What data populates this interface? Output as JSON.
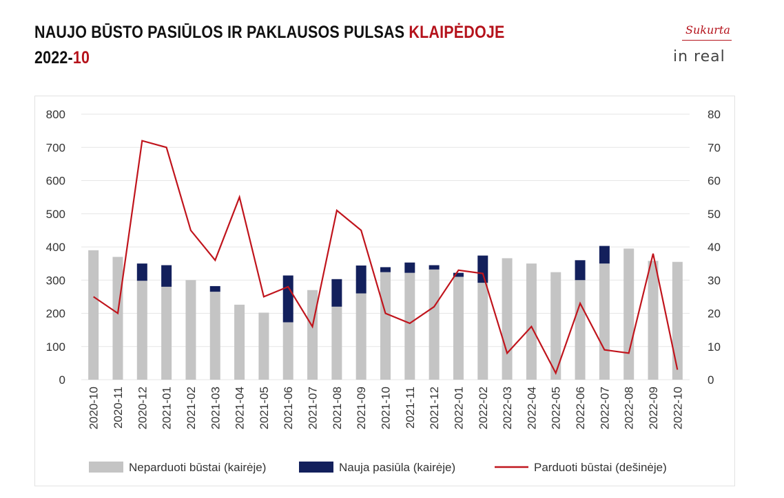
{
  "header": {
    "title_main": "NAUJO BŪSTO PASIŪLOS IR PAKLAUSOS PULSAS ",
    "title_accent": "KLAIPĖDOJE",
    "period_main": "2022-",
    "period_accent": "10"
  },
  "logo": {
    "top": "Sukurta",
    "main": "in real"
  },
  "colors": {
    "accent": "#b5121b",
    "unsold": "#c4c4c4",
    "new_offer": "#13205c",
    "sold_line": "#c0141c",
    "grid": "#e6e6e6"
  },
  "chart_data": {
    "type": "bar",
    "subtype": "stacked bar + line (secondary axis)",
    "categories": [
      "2020-10",
      "2020-11",
      "2020-12",
      "2021-01",
      "2021-02",
      "2021-03",
      "2021-04",
      "2021-05",
      "2021-06",
      "2021-07",
      "2021-08",
      "2021-09",
      "2021-10",
      "2021-11",
      "2021-12",
      "2022-01",
      "2022-02",
      "2022-03",
      "2022-04",
      "2022-05",
      "2022-06",
      "2022-07",
      "2022-08",
      "2022-09",
      "2022-10"
    ],
    "left_axis": {
      "ylim": [
        0,
        800
      ],
      "ticks": [
        "0",
        "100",
        "200",
        "300",
        "400",
        "500",
        "600",
        "700",
        "800"
      ]
    },
    "right_axis": {
      "ylim": [
        0,
        80
      ],
      "ticks": [
        "0",
        "10",
        "20",
        "30",
        "40",
        "50",
        "60",
        "70",
        "80"
      ]
    },
    "grid": true,
    "legend_position": "bottom",
    "series": [
      {
        "name": "Neparduoti būstai (kairėje)",
        "kind": "bar",
        "axis": "left",
        "values": [
          390,
          370,
          298,
          280,
          300,
          265,
          226,
          202,
          173,
          270,
          220,
          260,
          324,
          322,
          332,
          310,
          292,
          366,
          350,
          324,
          300,
          350,
          395,
          358,
          355
        ]
      },
      {
        "name": "Nauja pasiūla (kairėje)",
        "kind": "bar-stacked",
        "axis": "left",
        "values": [
          0,
          0,
          52,
          65,
          0,
          17,
          0,
          0,
          141,
          0,
          83,
          84,
          15,
          31,
          13,
          12,
          82,
          0,
          0,
          0,
          60,
          53,
          0,
          0,
          0
        ]
      },
      {
        "name": "Parduoti būstai (dešinėje)",
        "kind": "line",
        "axis": "right",
        "values": [
          25,
          20,
          72,
          70,
          45,
          36,
          55,
          25,
          28,
          16,
          51,
          45,
          20,
          17,
          22,
          33,
          32,
          8,
          16,
          2,
          23,
          9,
          8,
          38,
          3
        ]
      }
    ]
  }
}
